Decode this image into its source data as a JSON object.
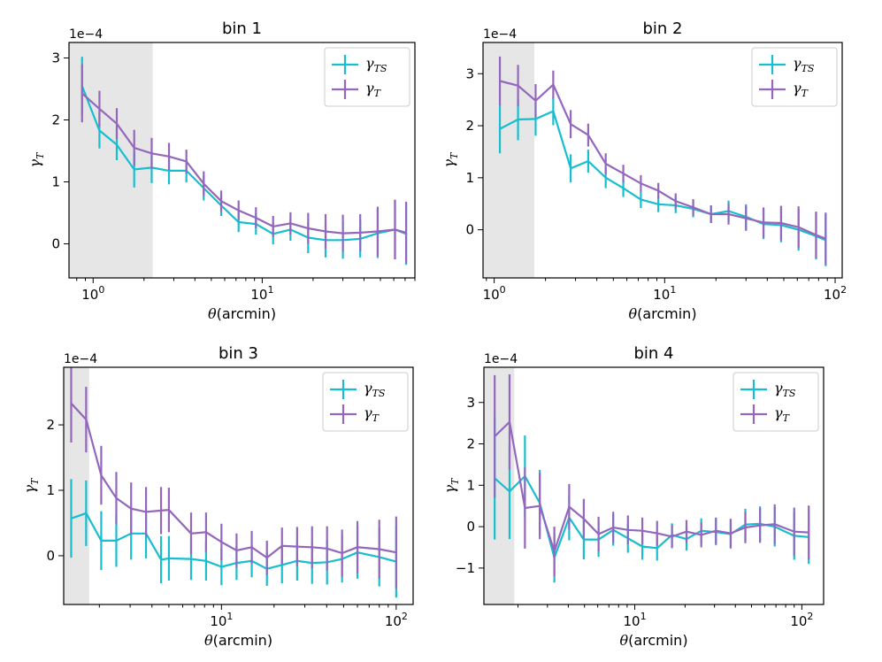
{
  "chart_data": [
    {
      "type": "line",
      "title": "bin 1",
      "xlabel": "θ(arcmin)",
      "ylabel": "γT",
      "xscale": "log",
      "xlim": [
        0.72,
        80
      ],
      "ylim": [
        -5.5e-05,
        0.000325
      ],
      "offset_label": "1e−4",
      "x_ticks": [
        {
          "value": 1,
          "label": "10^0"
        },
        {
          "value": 10,
          "label": "10^1"
        }
      ],
      "y_ticks": [
        {
          "value": 0,
          "label": "0"
        },
        {
          "value": 0.0001,
          "label": "1"
        },
        {
          "value": 0.0002,
          "label": "2"
        },
        {
          "value": 0.0003,
          "label": "3"
        }
      ],
      "shaded_region": [
        0.72,
        2.25
      ],
      "legend": {
        "position": "upper-right",
        "entries": [
          "γTS",
          "γT"
        ]
      },
      "x": [
        0.86,
        1.09,
        1.38,
        1.75,
        2.22,
        2.81,
        3.56,
        4.51,
        5.72,
        7.25,
        9.18,
        11.6,
        14.7,
        18.7,
        23.7,
        30.0,
        38.0,
        48.2,
        61.0,
        71.0
      ],
      "series": [
        {
          "name": "γTS",
          "color": "#17becf",
          "y": [
            0.000255,
            0.000183,
            0.00016,
            0.00012,
            0.000123,
            0.000118,
            0.000118,
            9e-05,
            6.2e-05,
            3.5e-05,
            3.2e-05,
            1.6e-05,
            2.3e-05,
            1e-05,
            6e-06,
            6e-06,
            8e-06,
            1.7e-05,
            2.3e-05,
            1.6e-05
          ],
          "err": [
            4.7e-05,
            2.9e-05,
            2.5e-05,
            2.9e-05,
            2.5e-05,
            2.2e-05,
            1.9e-05,
            2e-05,
            1.7e-05,
            1.6e-05,
            1.7e-05,
            1.7e-05,
            1.8e-05,
            2.5e-05,
            2.8e-05,
            3e-05,
            3e-05,
            4e-05,
            4.8e-05,
            5e-05
          ]
        },
        {
          "name": "γT",
          "color": "#9467bd",
          "y": [
            0.000243,
            0.000218,
            0.000194,
            0.000155,
            0.000146,
            0.000141,
            0.000133,
            9.7e-05,
            6.9e-05,
            5.4e-05,
            4.2e-05,
            2.8e-05,
            3.3e-05,
            2.5e-05,
            2e-05,
            1.7e-05,
            1.8e-05,
            2e-05,
            2.3e-05,
            1.8e-05
          ]
        }
      ]
    },
    {
      "type": "line",
      "title": "bin 2",
      "xlabel": "θ(arcmin)",
      "ylabel": "γT",
      "xscale": "log",
      "xlim": [
        0.86,
        110
      ],
      "ylim": [
        -9.25e-05,
        0.00036
      ],
      "offset_label": "1e−4",
      "x_ticks": [
        {
          "value": 1,
          "label": "10^0"
        },
        {
          "value": 10,
          "label": "10^1"
        },
        {
          "value": 100,
          "label": "10^2"
        }
      ],
      "y_ticks": [
        {
          "value": 0,
          "label": "0"
        },
        {
          "value": 0.0001,
          "label": "1"
        },
        {
          "value": 0.0002,
          "label": "2"
        },
        {
          "value": 0.0003,
          "label": "3"
        }
      ],
      "shaded_region": [
        0.86,
        1.72
      ],
      "legend": {
        "position": "upper-right",
        "entries": [
          "γTS",
          "γT"
        ]
      },
      "x": [
        1.08,
        1.38,
        1.75,
        2.22,
        2.81,
        3.56,
        4.51,
        5.72,
        7.25,
        9.18,
        11.6,
        14.7,
        18.7,
        23.7,
        30.0,
        38.0,
        48.2,
        61.0,
        77.3,
        88.0
      ],
      "series": [
        {
          "name": "γTS",
          "color": "#17becf",
          "y": [
            0.000194,
            0.000212,
            0.000213,
            0.000228,
            0.000118,
            0.000132,
            0.0001,
            8e-05,
            5.8e-05,
            4.9e-05,
            4.7e-05,
            4e-05,
            3e-05,
            3.6e-05,
            2.5e-05,
            1.1e-05,
            9e-06,
            0.0,
            -1.2e-05,
            -2e-05
          ]
        },
        {
          "name": "γT",
          "color": "#9467bd",
          "y": [
            0.000286,
            0.000277,
            0.000248,
            0.000279,
            0.000203,
            0.000182,
            0.000127,
            0.000108,
            8.9e-05,
            7.5e-05,
            5.5e-05,
            4.3e-05,
            3e-05,
            3e-05,
            2.2e-05,
            1.4e-05,
            1.3e-05,
            5e-06,
            -1e-05,
            -1.7e-05
          ],
          "err": [
            4.7e-05,
            4e-05,
            3.2e-05,
            2.7e-05,
            2.7e-05,
            2.2e-05,
            2e-05,
            1.7e-05,
            1.6e-05,
            1.5e-05,
            1.5e-05,
            1.6e-05,
            1.7e-05,
            2e-05,
            2.4e-05,
            2.9e-05,
            3.3e-05,
            4e-05,
            4.5e-05,
            5e-05
          ]
        }
      ]
    },
    {
      "type": "line",
      "title": "bin 3",
      "xlabel": "θ(arcmin)",
      "ylabel": "γT",
      "xscale": "log",
      "xlim": [
        1.25,
        125
      ],
      "ylim": [
        -7.45e-05,
        0.000288
      ],
      "offset_label": "1e−4",
      "x_ticks": [
        {
          "value": 10,
          "label": "10^1"
        },
        {
          "value": 100,
          "label": "10^2"
        }
      ],
      "y_ticks": [
        {
          "value": 0,
          "label": "0"
        },
        {
          "value": 0.0001,
          "label": "1"
        },
        {
          "value": 0.0002,
          "label": "2"
        }
      ],
      "shaded_region": [
        1.25,
        1.75
      ],
      "legend": {
        "position": "upper-right",
        "entries": [
          "γTS",
          "γT"
        ]
      },
      "x": [
        1.38,
        1.68,
        2.05,
        2.5,
        3.04,
        3.7,
        4.51,
        5.0,
        6.7,
        8.16,
        10.0,
        12.2,
        14.9,
        18.2,
        22.2,
        27.1,
        33.0,
        40.2,
        49.0,
        60.0,
        80.0,
        100.0
      ],
      "series": [
        {
          "name": "γTS",
          "color": "#17becf",
          "y": [
            5.7e-05,
            6.5e-05,
            2.3e-05,
            2.3e-05,
            3.4e-05,
            3.4e-05,
            -6e-06,
            -4e-06,
            -5e-06,
            -8e-06,
            -1.7e-05,
            -1.1e-05,
            -8e-06,
            -2e-05,
            -1.4e-05,
            -8e-06,
            -1.1e-05,
            -1e-05,
            -5e-06,
            5e-06,
            -2e-06,
            -9e-06
          ],
          "err": [
            6e-05,
            5e-05,
            4.5e-05,
            4e-05,
            4e-05,
            3.8e-05,
            3.6e-05,
            3.4e-05,
            3.2e-05,
            3e-05,
            2.8e-05,
            2.6e-05,
            2.5e-05,
            2.6e-05,
            2.8e-05,
            3e-05,
            3.2e-05,
            3.4e-05,
            3.6e-05,
            4e-05,
            4.5e-05,
            5.5e-05
          ]
        },
        {
          "name": "γT",
          "color": "#9467bd",
          "y": [
            0.000233,
            0.000208,
            0.000123,
            8.8e-05,
            7.2e-05,
            6.7e-05,
            6.9e-05,
            7e-05,
            3.4e-05,
            3.6e-05,
            2.1e-05,
            8e-06,
            1.3e-05,
            -3e-06,
            1.5e-05,
            1.4e-05,
            1.3e-05,
            1.1e-05,
            4e-06,
            1.3e-05,
            1e-05,
            5e-06
          ]
        }
      ]
    },
    {
      "type": "line",
      "title": "bin 4",
      "xlabel": "θ(arcmin)",
      "ylabel": "γT",
      "xscale": "log",
      "xlim": [
        1.25,
        135
      ],
      "ylim": [
        -0.000188,
        0.000385
      ],
      "offset_label": "1e−4",
      "x_ticks": [
        {
          "value": 10,
          "label": "10^1"
        },
        {
          "value": 100,
          "label": "10^2"
        }
      ],
      "y_ticks": [
        {
          "value": -0.0001,
          "label": "−1"
        },
        {
          "value": 0,
          "label": "0"
        },
        {
          "value": 0.0001,
          "label": "1"
        },
        {
          "value": 0.0002,
          "label": "2"
        },
        {
          "value": 0.0003,
          "label": "3"
        }
      ],
      "shaded_region": [
        1.25,
        1.9
      ],
      "legend": {
        "position": "upper-right",
        "entries": [
          "γTS",
          "γT"
        ]
      },
      "x": [
        1.45,
        1.78,
        2.2,
        2.7,
        3.3,
        4.05,
        4.95,
        6.07,
        7.43,
        9.1,
        11.1,
        13.6,
        16.7,
        20.4,
        25.0,
        30.6,
        37.5,
        45.9,
        56.2,
        68.8,
        90.0,
        110.0
      ],
      "series": [
        {
          "name": "γTS",
          "color": "#17becf",
          "y": [
            0.000117,
            8.5e-05,
            0.000122,
            5.7e-05,
            -7.5e-05,
            2.2e-05,
            -3.1e-05,
            -3.1e-05,
            -8e-06,
            -2.8e-05,
            -4.8e-05,
            -5.2e-05,
            -2e-05,
            -3e-05,
            -1e-05,
            -1.3e-05,
            -1.8e-05,
            5e-06,
            7e-06,
            0.0,
            -2.2e-05,
            -2.5e-05
          ],
          "err": [
            0.000148,
            0.000115,
            9.8e-05,
            8e-05,
            6e-05,
            5.5e-05,
            4.8e-05,
            4.2e-05,
            3.8e-05,
            3.5e-05,
            3.2e-05,
            3e-05,
            2.8e-05,
            2.8e-05,
            3e-05,
            3.2e-05,
            3.5e-05,
            3.8e-05,
            4.2e-05,
            4.8e-05,
            5.8e-05,
            6.5e-05
          ]
        },
        {
          "name": "γT",
          "color": "#9467bd",
          "y": [
            0.000218,
            0.000253,
            4.5e-05,
            5e-05,
            -6e-05,
            4.8e-05,
            1.9e-05,
            -1.8e-05,
            -2e-06,
            -8e-06,
            -1e-05,
            -1.6e-05,
            -2.4e-05,
            -1.2e-05,
            -2e-05,
            -1e-05,
            -1.6e-05,
            -2e-06,
            3e-06,
            6e-06,
            -1.2e-05,
            -1.4e-05
          ]
        }
      ]
    }
  ]
}
